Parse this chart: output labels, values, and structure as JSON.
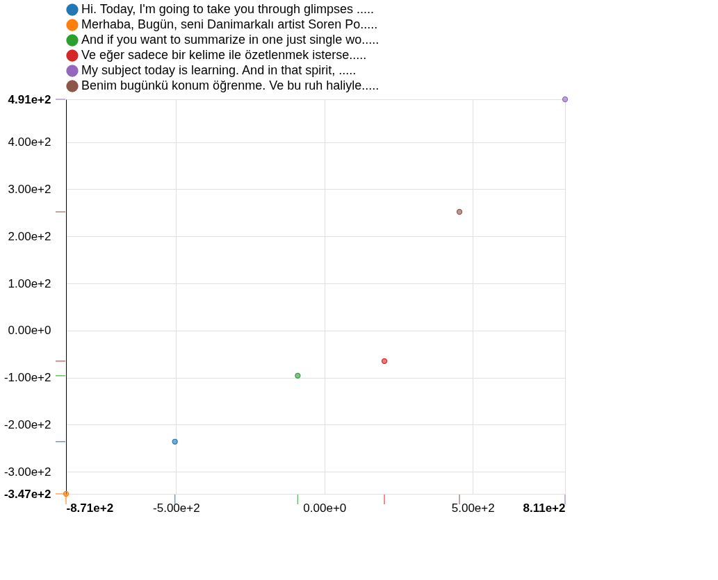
{
  "chart_data": {
    "type": "scatter",
    "legend": "top",
    "marker": "circle",
    "grid": true,
    "series": [
      {
        "name": "Hi. Today, I'm going to take you through glimpses .....",
        "color": "#1f77b4",
        "x": [
          -504
        ],
        "values": [
          -236
        ]
      },
      {
        "name": "Merhaba, Bugün, seni Danimarkalı artist Soren Po.....",
        "color": "#ff7f0e",
        "x": [
          -871
        ],
        "values": [
          -347
        ]
      },
      {
        "name": "And if you want to summarize in one just single wo.....",
        "color": "#2ca02c",
        "x": [
          -90
        ],
        "values": [
          -96
        ]
      },
      {
        "name": "Ve eğer sadece bir kelime ile özetlenmek isterse.....",
        "color": "#d62728",
        "x": [
          202
        ],
        "values": [
          -65
        ]
      },
      {
        "name": "My subject today is learning. And in that spirit, .....",
        "color": "#9467bd",
        "x": [
          811
        ],
        "values": [
          491
        ]
      },
      {
        "name": "Benim bugünkü konum öğrenme. Ve bu ruh haliyle.....",
        "color": "#8c564b",
        "x": [
          455
        ],
        "values": [
          252
        ]
      }
    ],
    "xlim": [
      -871,
      811
    ],
    "ylim": [
      -347,
      491
    ],
    "xticks": [
      {
        "value": -871,
        "label": "-8.71e+2"
      },
      {
        "value": -500,
        "label": "-5.00e+2"
      },
      {
        "value": 0,
        "label": "0.00e+0"
      },
      {
        "value": 500,
        "label": "5.00e+2"
      },
      {
        "value": 811,
        "label": "8.11e+2"
      }
    ],
    "yticks": [
      {
        "value": -347,
        "label": "-3.47e+2"
      },
      {
        "value": -300,
        "label": "-3.00e+2"
      },
      {
        "value": -200,
        "label": "-2.00e+2"
      },
      {
        "value": -100,
        "label": "-1.00e+2"
      },
      {
        "value": 0,
        "label": "0.00e+0"
      },
      {
        "value": 100,
        "label": "1.00e+2"
      },
      {
        "value": 200,
        "label": "2.00e+2"
      },
      {
        "value": 300,
        "label": "3.00e+2"
      },
      {
        "value": 400,
        "label": "4.00e+2"
      },
      {
        "value": 491,
        "label": "4.91e+2"
      }
    ]
  }
}
